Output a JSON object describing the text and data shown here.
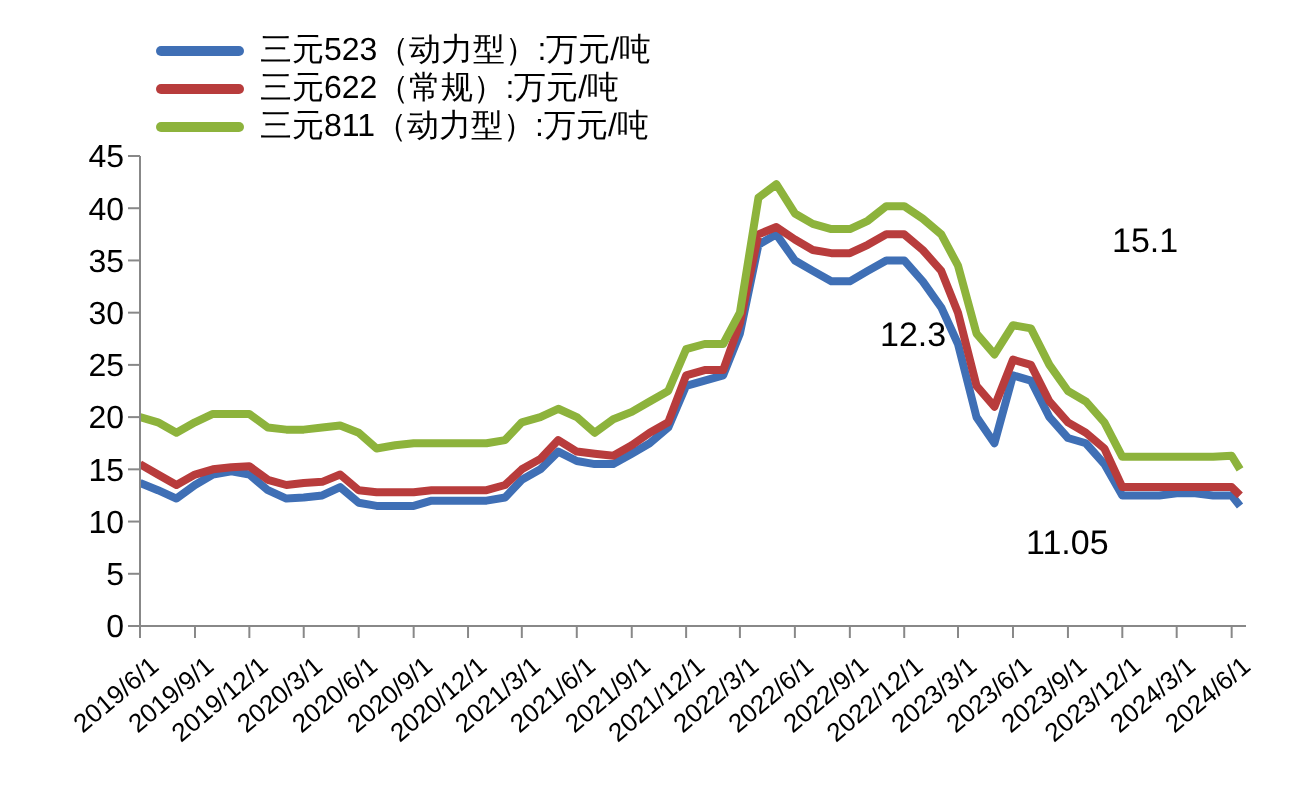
{
  "chart_data": {
    "type": "line",
    "x": [
      "2019-06-01",
      "2019-07-01",
      "2019-08-01",
      "2019-09-01",
      "2019-10-01",
      "2019-11-01",
      "2019-12-01",
      "2020-01-01",
      "2020-02-01",
      "2020-03-01",
      "2020-04-01",
      "2020-05-01",
      "2020-06-01",
      "2020-07-01",
      "2020-08-01",
      "2020-09-01",
      "2020-10-01",
      "2020-11-01",
      "2020-12-01",
      "2021-01-01",
      "2021-02-01",
      "2021-03-01",
      "2021-04-01",
      "2021-05-01",
      "2021-06-01",
      "2021-07-01",
      "2021-08-01",
      "2021-09-01",
      "2021-10-01",
      "2021-11-01",
      "2021-12-01",
      "2022-01-01",
      "2022-02-01",
      "2022-03-01",
      "2022-04-01",
      "2022-05-01",
      "2022-06-01",
      "2022-07-01",
      "2022-08-01",
      "2022-09-01",
      "2022-10-01",
      "2022-11-01",
      "2022-12-01",
      "2023-01-01",
      "2023-02-01",
      "2023-03-01",
      "2023-04-01",
      "2023-05-01",
      "2023-06-01",
      "2023-07-01",
      "2023-08-01",
      "2023-09-01",
      "2023-10-01",
      "2023-11-01",
      "2023-12-01",
      "2024-01-01",
      "2024-02-01",
      "2024-03-01",
      "2024-04-01",
      "2024-05-01",
      "2024-06-01",
      "2024-06-15"
    ],
    "series": [
      {
        "name": "三元523（动力型）:万元/吨",
        "color": "#3f6fb5",
        "values": [
          13.7,
          13,
          12.2,
          13.5,
          14.5,
          14.8,
          14.5,
          13,
          12.2,
          12.3,
          12.5,
          13.3,
          11.8,
          11.5,
          11.5,
          11.5,
          12,
          12,
          12,
          12,
          12.3,
          14,
          15,
          16.7,
          15.8,
          15.5,
          15.5,
          16.5,
          17.5,
          19,
          23,
          23.5,
          24,
          28,
          36.5,
          37.5,
          35,
          34,
          33,
          33,
          34,
          35,
          35,
          33,
          30.5,
          27,
          20,
          17.5,
          24,
          23.5,
          20,
          18,
          17.5,
          15.5,
          12.5,
          12.5,
          12.5,
          12.7,
          12.7,
          12.5,
          12.5,
          11.5
        ]
      },
      {
        "name": "三元622（常规）:万元/吨",
        "color": "#b83c3c",
        "values": [
          15.5,
          14.5,
          13.5,
          14.5,
          15,
          15.2,
          15.3,
          14,
          13.5,
          13.7,
          13.8,
          14.5,
          13,
          12.8,
          12.8,
          12.8,
          13,
          13,
          13,
          13,
          13.5,
          15,
          16,
          17.8,
          16.7,
          16.5,
          16.3,
          17.3,
          18.5,
          19.5,
          24,
          24.5,
          24.5,
          29,
          37.5,
          38.2,
          37,
          36,
          35.7,
          35.7,
          36.5,
          37.5,
          37.5,
          36,
          34,
          30,
          23,
          21,
          25.5,
          25,
          21.5,
          19.5,
          18.5,
          17,
          13.3,
          13.3,
          13.3,
          13.3,
          13.3,
          13.3,
          13.3,
          12.5
        ]
      },
      {
        "name": "三元811（动力型）:万元/吨",
        "color": "#8db33c",
        "values": [
          20,
          19.5,
          18.5,
          19.5,
          20.3,
          20.3,
          20.3,
          19,
          18.8,
          18.8,
          19,
          19.2,
          18.5,
          17,
          17.3,
          17.5,
          17.5,
          17.5,
          17.5,
          17.5,
          17.8,
          19.5,
          20,
          20.8,
          20,
          18.5,
          19.8,
          20.5,
          21.5,
          22.5,
          26.5,
          27,
          27,
          30,
          41,
          42.3,
          39.5,
          38.5,
          38,
          38,
          38.8,
          40.2,
          40.2,
          39,
          37.5,
          34.5,
          28,
          26,
          28.8,
          28.5,
          25,
          22.5,
          21.5,
          19.5,
          16.2,
          16.2,
          16.2,
          16.2,
          16.2,
          16.2,
          16.3,
          15
        ]
      }
    ],
    "xlim": [
      "2019-06-01",
      "2024-06-25"
    ],
    "xticks": [
      {
        "value": "2019-06-01",
        "label": "2019/6/1"
      },
      {
        "value": "2019-09-01",
        "label": "2019/9/1"
      },
      {
        "value": "2019-12-01",
        "label": "2019/12/1"
      },
      {
        "value": "2020-03-01",
        "label": "2020/3/1"
      },
      {
        "value": "2020-06-01",
        "label": "2020/6/1"
      },
      {
        "value": "2020-09-01",
        "label": "2020/9/1"
      },
      {
        "value": "2020-12-01",
        "label": "2020/12/1"
      },
      {
        "value": "2021-03-01",
        "label": "2021/3/1"
      },
      {
        "value": "2021-06-01",
        "label": "2021/6/1"
      },
      {
        "value": "2021-09-01",
        "label": "2021/9/1"
      },
      {
        "value": "2021-12-01",
        "label": "2021/12/1"
      },
      {
        "value": "2022-03-01",
        "label": "2022/3/1"
      },
      {
        "value": "2022-06-01",
        "label": "2022/6/1"
      },
      {
        "value": "2022-09-01",
        "label": "2022/9/1"
      },
      {
        "value": "2022-12-01",
        "label": "2022/12/1"
      },
      {
        "value": "2023-03-01",
        "label": "2023/3/1"
      },
      {
        "value": "2023-06-01",
        "label": "2023/6/1"
      },
      {
        "value": "2023-09-01",
        "label": "2023/9/1"
      },
      {
        "value": "2023-12-01",
        "label": "2023/12/1"
      },
      {
        "value": "2024-03-01",
        "label": "2024/3/1"
      },
      {
        "value": "2024-06-01",
        "label": "2024/6/1"
      }
    ],
    "ylim": [
      0,
      45
    ],
    "yticks": [
      0,
      5,
      10,
      15,
      20,
      25,
      30,
      35,
      40,
      45
    ],
    "annotations": [
      "15.1",
      "12.3",
      "11.05"
    ],
    "legend": "top",
    "grid": false,
    "marker": "none",
    "line_style": "solid"
  }
}
